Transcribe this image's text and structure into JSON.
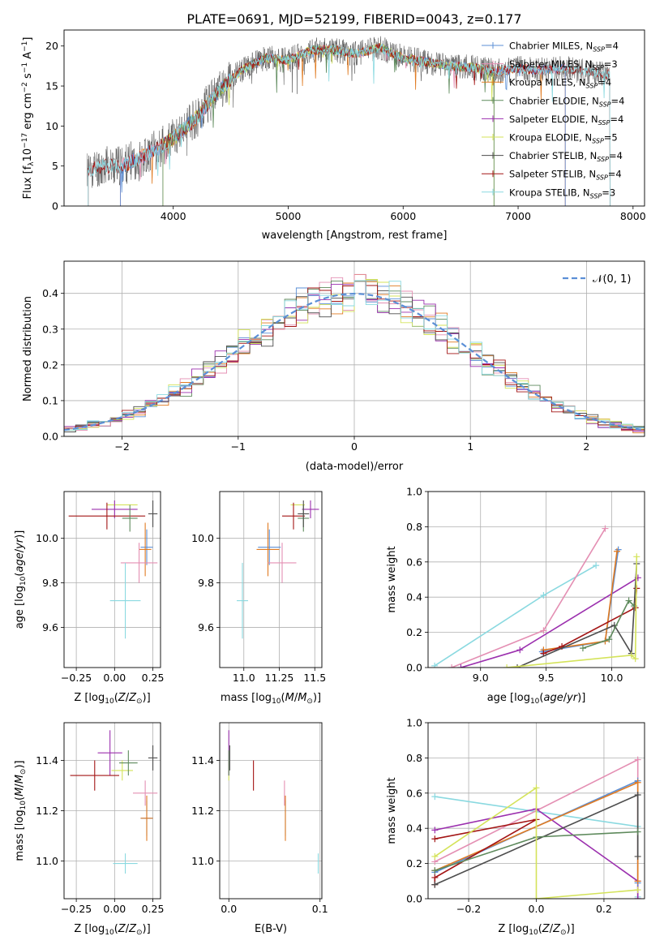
{
  "figure_title": "PLATE=0691, MJD=52199, FIBERID=0043, z=0.177",
  "colors": {
    "c0": "#5b8fd6",
    "c1": "#e07b22",
    "c2": "#e48fb3",
    "c3": "#7b1e6e",
    "c4": "#d4e35a",
    "c5": "#4d4d4d",
    "c6": "#a31515",
    "c7": "#8ad9e0",
    "c8": "#5e8a5c",
    "c9": "#9b2fae",
    "gauss": "#5b8fd6",
    "grid": "#b0b0b0"
  },
  "chart_data": [
    {
      "id": "spectrum",
      "type": "line",
      "title": "PLATE=0691, MJD=52199, FIBERID=0043, z=0.177",
      "xlabel": "wavelength [Angstrom, rest frame]",
      "ylabel": "Flux [f_λ10^-17 erg cm^-2 s^-1 A^-1]",
      "xlim": [
        3050,
        8100
      ],
      "ylim": [
        0,
        22
      ],
      "xticks": [
        4000,
        5000,
        6000,
        7000,
        8000
      ],
      "yticks": [
        0,
        5,
        10,
        15,
        20
      ],
      "grid": false,
      "legend_position": "top-right",
      "data": {
        "x": [
          3250,
          3400,
          3550,
          3700,
          3850,
          4000,
          4200,
          4400,
          4600,
          4800,
          5000,
          5200,
          5400,
          5600,
          5800,
          6000,
          6200,
          6400,
          6600,
          6800,
          7000,
          7200,
          7400,
          7600,
          7800
        ],
        "y": [
          4.5,
          5.0,
          5.0,
          6.0,
          7.0,
          8.5,
          11.0,
          14.5,
          17.0,
          18.5,
          18.2,
          19.5,
          19.5,
          19.0,
          19.8,
          18.5,
          18.0,
          17.5,
          17.3,
          16.8,
          17.2,
          17.0,
          17.2,
          16.8,
          16.5
        ]
      },
      "series": [
        {
          "name": "Chabrier MILES, N_SSP=4",
          "color": "#5b8fd6"
        },
        {
          "name": "Salpeter MILES, N_SSP=3",
          "color": "#e48fb3"
        },
        {
          "name": "Kroupa MILES, N_SSP=4",
          "color": "#e07b22"
        },
        {
          "name": "Chabrier ELODIE, N_SSP=4",
          "color": "#5e8a5c"
        },
        {
          "name": "Salpeter ELODIE, N_SSP=4",
          "color": "#9b2fae"
        },
        {
          "name": "Kroupa ELODIE, N_SSP=5",
          "color": "#d4e35a"
        },
        {
          "name": "Chabrier STELIB, N_SSP=4",
          "color": "#4d4d4d"
        },
        {
          "name": "Salpeter STELIB, N_SSP=4",
          "color": "#a31515"
        },
        {
          "name": "Kroupa STELIB, N_SSP=3",
          "color": "#8ad9e0"
        }
      ],
      "legend": [
        {
          "prefix": "Chabrier MILES, N",
          "sub": "SSP",
          "suffix": "=4",
          "color": "#5b8fd6"
        },
        {
          "prefix": "Salpeter MILES, N",
          "sub": "SSP",
          "suffix": "=3",
          "color": "#e48fb3"
        },
        {
          "prefix": "Kroupa MILES, N",
          "sub": "SSP",
          "suffix": "=4",
          "color": "#e07b22"
        },
        {
          "prefix": "Chabrier ELODIE, N",
          "sub": "SSP",
          "suffix": "=4",
          "color": "#5e8a5c"
        },
        {
          "prefix": "Salpeter ELODIE, N",
          "sub": "SSP",
          "suffix": "=4",
          "color": "#9b2fae"
        },
        {
          "prefix": "Kroupa ELODIE, N",
          "sub": "SSP",
          "suffix": "=5",
          "color": "#d4e35a"
        },
        {
          "prefix": "Chabrier STELIB, N",
          "sub": "SSP",
          "suffix": "=4",
          "color": "#4d4d4d"
        },
        {
          "prefix": "Salpeter STELIB, N",
          "sub": "SSP",
          "suffix": "=4",
          "color": "#a31515"
        },
        {
          "prefix": "Kroupa STELIB, N",
          "sub": "SSP",
          "suffix": "=3",
          "color": "#8ad9e0"
        }
      ],
      "model_ranges": [
        {
          "color": "#e07b22",
          "xmin": 3540,
          "xmax": 7410
        },
        {
          "color": "#e48fb3",
          "xmin": 3540,
          "xmax": 7410
        },
        {
          "color": "#5b8fd6",
          "xmin": 3540,
          "xmax": 7410
        },
        {
          "color": "#d4e35a",
          "xmin": 3910,
          "xmax": 6790
        },
        {
          "color": "#5e8a5c",
          "xmin": 3910,
          "xmax": 6790
        },
        {
          "color": "#a31515",
          "xmin": 3260,
          "xmax": 7800
        },
        {
          "color": "#8ad9e0",
          "xmin": 3260,
          "xmax": 7800
        }
      ]
    },
    {
      "id": "residuals",
      "type": "line",
      "xlabel": "(data-model)/error",
      "ylabel": "Normed distribution",
      "xlim": [
        -2.5,
        2.5
      ],
      "ylim": [
        0,
        0.49
      ],
      "xticks": [
        -2,
        -1,
        0,
        1,
        2
      ],
      "yticks": [
        0.0,
        0.1,
        0.2,
        0.3,
        0.4
      ],
      "grid": true,
      "legend_position": "top-right",
      "legend_label": "𝒩(0, 1)",
      "gaussian": {
        "mean": 0,
        "sigma": 1
      },
      "bin_width": 0.1,
      "jitter_seeds": [
        1,
        2,
        3,
        4,
        5,
        6,
        7,
        8,
        9
      ]
    },
    {
      "id": "age-vs-Z",
      "type": "scatter",
      "xlabel": "Z [log10(Z/Z⊙)]",
      "ylabel": "age [log10(age/yr)]",
      "xlim": [
        -0.33,
        0.3
      ],
      "ylim": [
        9.42,
        10.21
      ],
      "xticks": [
        -0.25,
        0.0,
        0.25
      ],
      "xticklabels": [
        "−0.25",
        "0.00",
        "0.25"
      ],
      "yticks": [
        9.6,
        9.8,
        10.0
      ],
      "grid": true,
      "points": [
        {
          "color": "#d4e35a",
          "x": 0.05,
          "xerr": 0.1,
          "y": 10.15,
          "yerr": 0.0
        },
        {
          "color": "#9b2fae",
          "x": 0.0,
          "xerr": 0.15,
          "y": 10.13,
          "yerr": 0.04
        },
        {
          "color": "#a31515",
          "x": -0.05,
          "xerr": 0.25,
          "y": 10.1,
          "yerr": 0.06
        },
        {
          "color": "#5e8a5c",
          "x": 0.1,
          "xerr": 0.05,
          "y": 10.09,
          "yerr": 0.06
        },
        {
          "color": "#4d4d4d",
          "x": 0.25,
          "xerr": 0.03,
          "y": 10.11,
          "yerr": 0.06
        },
        {
          "color": "#5b8fd6",
          "x": 0.21,
          "xerr": 0.04,
          "y": 9.96,
          "yerr": 0.08
        },
        {
          "color": "#e07b22",
          "x": 0.2,
          "xerr": 0.04,
          "y": 9.95,
          "yerr": 0.12
        },
        {
          "color": "#e48fb3",
          "x": 0.16,
          "xerr": 0.12,
          "y": 9.89,
          "yerr": 0.09
        },
        {
          "color": "#8ad9e0",
          "x": 0.07,
          "xerr": 0.1,
          "y": 9.72,
          "yerr": 0.17
        }
      ]
    },
    {
      "id": "age-vs-mass",
      "type": "scatter",
      "xlabel": "mass [log10(M/M⊙)]",
      "ylabel": "",
      "xlim": [
        10.83,
        11.55
      ],
      "ylim": [
        9.42,
        10.21
      ],
      "xticks": [
        11.0,
        11.25,
        11.5
      ],
      "xticklabels": [
        "11.0",
        "11.25",
        "11.5"
      ],
      "yticks": [
        9.6,
        9.8,
        10.0
      ],
      "grid": true,
      "points": [
        {
          "color": "#d4e35a",
          "x": 11.38,
          "xerr": 0.05,
          "y": 10.15,
          "yerr": 0.0
        },
        {
          "color": "#9b2fae",
          "x": 11.47,
          "xerr": 0.06,
          "y": 10.13,
          "yerr": 0.04
        },
        {
          "color": "#a31515",
          "x": 11.35,
          "xerr": 0.08,
          "y": 10.1,
          "yerr": 0.06
        },
        {
          "color": "#5e8a5c",
          "x": 11.42,
          "xerr": 0.04,
          "y": 10.09,
          "yerr": 0.06
        },
        {
          "color": "#4d4d4d",
          "x": 11.42,
          "xerr": 0.04,
          "y": 10.11,
          "yerr": 0.06
        },
        {
          "color": "#5b8fd6",
          "x": 11.18,
          "xerr": 0.08,
          "y": 9.96,
          "yerr": 0.08
        },
        {
          "color": "#e07b22",
          "x": 11.17,
          "xerr": 0.08,
          "y": 9.95,
          "yerr": 0.12
        },
        {
          "color": "#e48fb3",
          "x": 11.27,
          "xerr": 0.1,
          "y": 9.89,
          "yerr": 0.09
        },
        {
          "color": "#8ad9e0",
          "x": 10.99,
          "xerr": 0.04,
          "y": 9.72,
          "yerr": 0.17
        }
      ]
    },
    {
      "id": "weight-vs-age",
      "type": "line",
      "xlabel": "age [log10(age/yr)]",
      "ylabel": "mass weight",
      "xlim": [
        8.6,
        10.25
      ],
      "ylim": [
        0,
        1
      ],
      "xticks": [
        9.0,
        9.5,
        10.0
      ],
      "xticklabels": [
        "9.0",
        "9.5",
        "10.0"
      ],
      "yticks": [
        0.0,
        0.2,
        0.4,
        0.6,
        0.8,
        1.0
      ],
      "grid": true,
      "series": [
        {
          "color": "#8ad9e0",
          "x": [
            8.65,
            9.48,
            9.88
          ],
          "y": [
            0.01,
            0.41,
            0.58
          ]
        },
        {
          "color": "#e48fb3",
          "x": [
            8.78,
            9.48,
            9.95
          ],
          "y": [
            0.0,
            0.21,
            0.79
          ]
        },
        {
          "color": "#9b2fae",
          "x": [
            8.85,
            9.3,
            10.2
          ],
          "y": [
            0.0,
            0.1,
            0.51
          ]
        },
        {
          "color": "#5b8fd6",
          "x": [
            9.47,
            9.95,
            10.05
          ],
          "y": [
            0.09,
            0.15,
            0.67
          ]
        },
        {
          "color": "#e07b22",
          "x": [
            9.48,
            9.95,
            10.04
          ],
          "y": [
            0.1,
            0.15,
            0.66
          ]
        },
        {
          "color": "#a31515",
          "x": [
            9.48,
            9.62,
            10.18,
            10.19
          ],
          "y": [
            0.08,
            0.12,
            0.34,
            0.45
          ]
        },
        {
          "color": "#4d4d4d",
          "x": [
            9.28,
            10.02,
            10.15,
            10.19
          ],
          "y": [
            0.0,
            0.24,
            0.08,
            0.59
          ]
        },
        {
          "color": "#5e8a5c",
          "x": [
            9.78,
            9.98,
            10.13,
            10.17
          ],
          "y": [
            0.11,
            0.16,
            0.38,
            0.35
          ]
        },
        {
          "color": "#d4e35a",
          "x": [
            9.2,
            10.15,
            10.18,
            10.19
          ],
          "y": [
            0.0,
            0.07,
            0.05,
            0.63
          ]
        }
      ]
    },
    {
      "id": "mass-vs-Z",
      "type": "scatter",
      "xlabel": "Z [log10(Z/Z⊙)]",
      "ylabel": "mass [log10(M/M⊙)]",
      "xlim": [
        -0.33,
        0.3
      ],
      "ylim": [
        10.85,
        11.55
      ],
      "xticks": [
        -0.25,
        0.0,
        0.25
      ],
      "xticklabels": [
        "−0.25",
        "0.00",
        "0.25"
      ],
      "yticks": [
        11.0,
        11.2,
        11.4
      ],
      "grid": true,
      "points": [
        {
          "color": "#d4e35a",
          "x": 0.05,
          "xerr": 0.07,
          "y": 11.36,
          "yerr": 0.04
        },
        {
          "color": "#9b2fae",
          "x": -0.03,
          "xerr": 0.08,
          "y": 11.43,
          "yerr": 0.09
        },
        {
          "color": "#a31515",
          "x": -0.13,
          "xerr": 0.16,
          "y": 11.34,
          "yerr": 0.06
        },
        {
          "color": "#5e8a5c",
          "x": 0.09,
          "xerr": 0.06,
          "y": 11.39,
          "yerr": 0.05
        },
        {
          "color": "#4d4d4d",
          "x": 0.25,
          "xerr": 0.03,
          "y": 11.41,
          "yerr": 0.05
        },
        {
          "color": "#5b8fd6",
          "x": 0.21,
          "xerr": 0.04,
          "y": 11.17,
          "yerr": 0.07
        },
        {
          "color": "#e07b22",
          "x": 0.21,
          "xerr": 0.04,
          "y": 11.17,
          "yerr": 0.09
        },
        {
          "color": "#e48fb3",
          "x": 0.2,
          "xerr": 0.08,
          "y": 11.27,
          "yerr": 0.05
        },
        {
          "color": "#8ad9e0",
          "x": 0.07,
          "xerr": 0.08,
          "y": 10.99,
          "yerr": 0.04
        }
      ]
    },
    {
      "id": "mass-vs-EBV",
      "type": "scatter",
      "xlabel": "E(B-V)",
      "ylabel": "",
      "xlim": [
        -0.01,
        0.102
      ],
      "ylim": [
        10.85,
        11.55
      ],
      "xticks": [
        0.0,
        0.1
      ],
      "xticklabels": [
        "0.0",
        "0.1"
      ],
      "yticks": [
        11.0,
        11.2,
        11.4
      ],
      "grid": true,
      "points": [
        {
          "color": "#d4e35a",
          "x": 0.0,
          "xerr": 0.0,
          "y": 11.36,
          "yerr": 0.04
        },
        {
          "color": "#9b2fae",
          "x": 0.0,
          "xerr": 0.0,
          "y": 11.43,
          "yerr": 0.09
        },
        {
          "color": "#5e8a5c",
          "x": 0.0,
          "xerr": 0.0,
          "y": 11.39,
          "yerr": 0.05
        },
        {
          "color": "#4d4d4d",
          "x": 0.001,
          "xerr": 0.0,
          "y": 11.41,
          "yerr": 0.05
        },
        {
          "color": "#a31515",
          "x": 0.027,
          "xerr": 0.0,
          "y": 11.34,
          "yerr": 0.06
        },
        {
          "color": "#e48fb3",
          "x": 0.061,
          "xerr": 0.0,
          "y": 11.27,
          "yerr": 0.05
        },
        {
          "color": "#5b8fd6",
          "x": 0.062,
          "xerr": 0.0,
          "y": 11.17,
          "yerr": 0.07
        },
        {
          "color": "#e07b22",
          "x": 0.062,
          "xerr": 0.0,
          "y": 11.17,
          "yerr": 0.09
        },
        {
          "color": "#8ad9e0",
          "x": 0.098,
          "xerr": 0.0,
          "y": 10.99,
          "yerr": 0.04
        }
      ]
    },
    {
      "id": "weight-vs-Z",
      "type": "line",
      "xlabel": "Z [log10(Z/Z⊙)]",
      "ylabel": "mass weight",
      "xlim": [
        -0.32,
        0.32
      ],
      "ylim": [
        0,
        1
      ],
      "xticks": [
        -0.2,
        0.0,
        0.2
      ],
      "xticklabels": [
        "−0.2",
        "0.0",
        "0.2"
      ],
      "yticks": [
        0.0,
        0.2,
        0.4,
        0.6,
        0.8,
        1.0
      ],
      "grid": true,
      "series": [
        {
          "color": "#8ad9e0",
          "x": [
            -0.3,
            0.3,
            0.3
          ],
          "y": [
            0.58,
            0.41,
            0.01
          ]
        },
        {
          "color": "#e48fb3",
          "x": [
            -0.3,
            0.3,
            0.3
          ],
          "y": [
            0.21,
            0.79,
            0.0
          ]
        },
        {
          "color": "#9b2fae",
          "x": [
            -0.3,
            0.0,
            0.3,
            0.3
          ],
          "y": [
            0.39,
            0.51,
            0.1,
            0.0
          ]
        },
        {
          "color": "#5b8fd6",
          "x": [
            -0.3,
            0.3,
            0.3
          ],
          "y": [
            0.15,
            0.67,
            0.09
          ]
        },
        {
          "color": "#e07b22",
          "x": [
            -0.3,
            0.3,
            0.3
          ],
          "y": [
            0.16,
            0.66,
            0.1
          ]
        },
        {
          "color": "#a31515",
          "x": [
            -0.3,
            0.0,
            -0.3,
            -0.3
          ],
          "y": [
            0.34,
            0.45,
            0.12,
            0.08
          ]
        },
        {
          "color": "#4d4d4d",
          "x": [
            -0.3,
            0.3,
            0.3
          ],
          "y": [
            0.08,
            0.59,
            0.24
          ]
        },
        {
          "color": "#5e8a5c",
          "x": [
            -0.3,
            0.0,
            0.3
          ],
          "y": [
            0.16,
            0.35,
            0.38
          ]
        },
        {
          "color": "#d4e35a",
          "x": [
            -0.3,
            0.0,
            0.0,
            0.3
          ],
          "y": [
            0.24,
            0.63,
            0.0,
            0.05
          ]
        }
      ]
    }
  ]
}
